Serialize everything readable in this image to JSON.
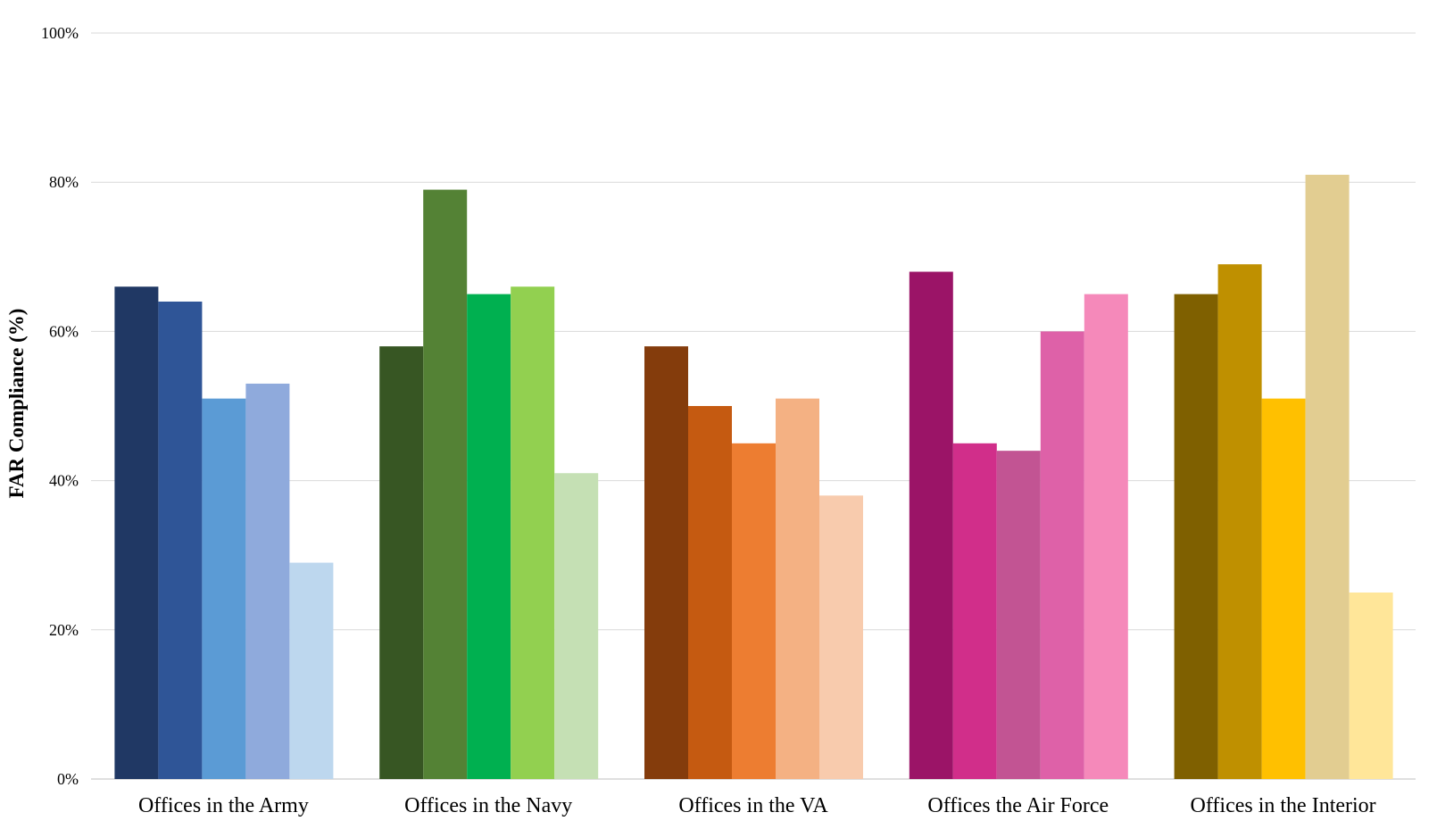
{
  "chart_data": {
    "type": "bar",
    "ylabel": "FAR Compliance (%)",
    "ylim": [
      0,
      100
    ],
    "yticks": [
      "0%",
      "20%",
      "40%",
      "60%",
      "80%",
      "100%"
    ],
    "ytick_values": [
      0,
      20,
      40,
      60,
      80,
      100
    ],
    "grid": true,
    "legend": "none",
    "groups": [
      {
        "label": "Offices in the Army",
        "values": [
          66,
          64,
          51,
          53,
          29
        ],
        "colors": [
          "#203864",
          "#2F5597",
          "#5B9BD5",
          "#8FAADC",
          "#BDD7EE"
        ]
      },
      {
        "label": "Offices in the Navy",
        "values": [
          58,
          79,
          65,
          66,
          41
        ],
        "colors": [
          "#375623",
          "#548235",
          "#00B050",
          "#92D050",
          "#C5E0B4"
        ]
      },
      {
        "label": "Offices in the VA",
        "values": [
          58,
          50,
          45,
          51,
          38
        ],
        "colors": [
          "#843C0C",
          "#C55A11",
          "#ED7D31",
          "#F4B183",
          "#F8CBAD"
        ]
      },
      {
        "label": "Offices the Air Force",
        "values": [
          68,
          45,
          44,
          60,
          65
        ],
        "colors": [
          "#9B1467",
          "#D12E8A",
          "#C25493",
          "#DE61A8",
          "#F589BA"
        ]
      },
      {
        "label": "Offices in the Interior",
        "values": [
          65,
          69,
          51,
          81,
          25
        ],
        "colors": [
          "#7F6000",
          "#BF9000",
          "#FFC000",
          "#E2CD91",
          "#FFE699"
        ]
      }
    ]
  }
}
